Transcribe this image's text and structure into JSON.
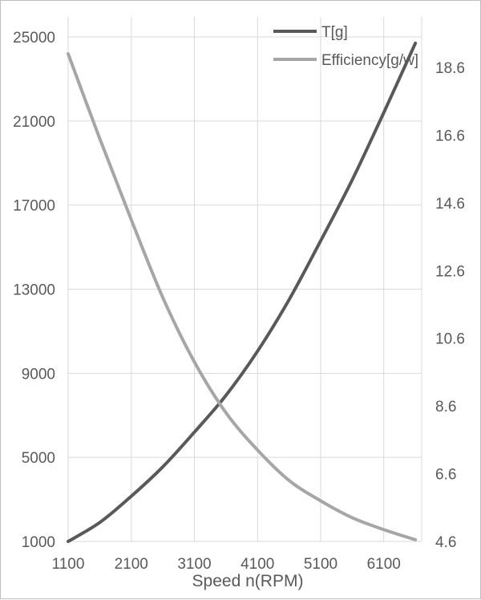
{
  "chart_data": {
    "type": "line",
    "title": "",
    "xlabel": "Speed n(RPM)",
    "ylabel": "",
    "y2label": "",
    "xlim": [
      1100,
      6700
    ],
    "ylim": [
      1000,
      25000
    ],
    "y2lim": [
      4.6,
      19.5
    ],
    "x_ticks": [
      "1100",
      "2100",
      "3100",
      "4100",
      "5100",
      "6100"
    ],
    "y_ticks": [
      "1000",
      "5000",
      "9000",
      "13000",
      "17000",
      "21000",
      "25000"
    ],
    "y2_ticks": [
      "4.6",
      "6.6",
      "8.6",
      "10.6",
      "12.6",
      "14.6",
      "16.6",
      "18.6"
    ],
    "grid": true,
    "legend_position": "top-right",
    "series": [
      {
        "name": "T[g]",
        "axis": "left",
        "color": "#595959",
        "x": [
          1100,
          1600,
          2100,
          2600,
          3100,
          3600,
          4100,
          4600,
          5100,
          5600,
          6100,
          6600
        ],
        "values": [
          1000,
          1900,
          3150,
          4550,
          6200,
          7950,
          10050,
          12500,
          15300,
          18200,
          21400,
          24700
        ]
      },
      {
        "name": "Efficiency[g/w]",
        "axis": "right",
        "color": "#a6a6a6",
        "x": [
          1100,
          1600,
          2100,
          2600,
          3100,
          3600,
          4100,
          4600,
          5100,
          5600,
          6100,
          6600
        ],
        "values": [
          19.0,
          16.5,
          14.1,
          11.8,
          9.9,
          8.4,
          7.3,
          6.4,
          5.8,
          5.3,
          4.95,
          4.65
        ]
      }
    ]
  }
}
